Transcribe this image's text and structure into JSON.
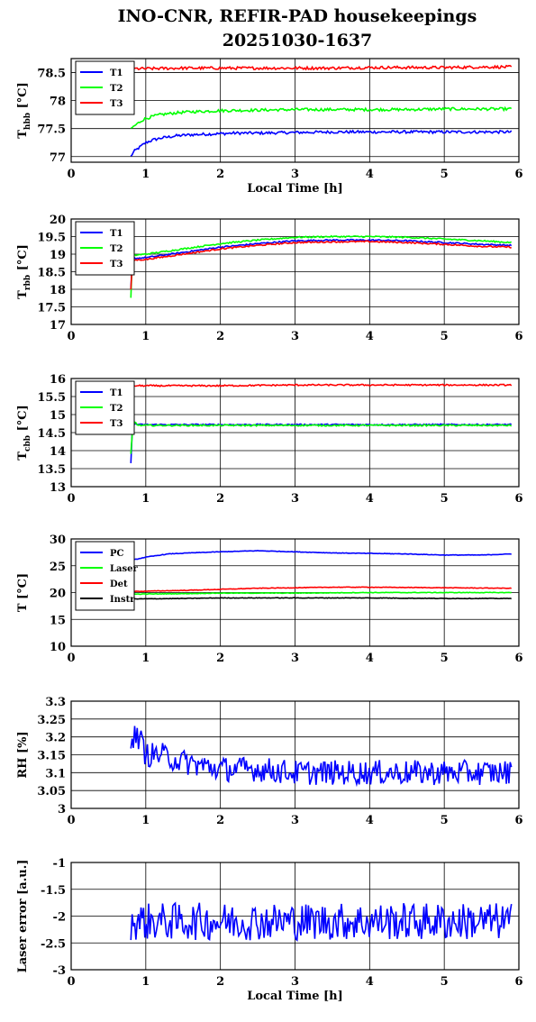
{
  "title_line1": "INO-CNR, REFIR-PAD housekeepings",
  "title_line2": "20251030-1637",
  "chart_data": [
    {
      "type": "line",
      "ylabel_main": "T",
      "ylabel_sub": "hbb",
      "ylabel_unit": "[°C]",
      "xlabel": "Local Time [h]",
      "xlim": [
        0,
        6
      ],
      "ylim": [
        76.9,
        78.75
      ],
      "xticks": [
        0,
        1,
        2,
        3,
        4,
        5,
        6
      ],
      "yticks": [
        77,
        77.5,
        78,
        78.5
      ],
      "ytick_labels": [
        "77",
        "77.5",
        "78",
        "78.5"
      ],
      "grid": true,
      "legend": "top-left",
      "series": [
        {
          "name": "T1",
          "color": "#0000ff",
          "x": [
            0.8,
            0.82,
            0.85,
            0.9,
            0.95,
            1.0,
            1.1,
            1.2,
            1.4,
            1.6,
            1.8,
            2.0,
            2.2,
            2.5,
            3.0,
            3.5,
            4.0,
            4.5,
            5.0,
            5.5,
            5.9
          ],
          "values": [
            77.0,
            77.05,
            77.1,
            77.15,
            77.2,
            77.25,
            77.3,
            77.33,
            77.37,
            77.39,
            77.4,
            77.41,
            77.42,
            77.42,
            77.43,
            77.44,
            77.44,
            77.44,
            77.44,
            77.44,
            77.44
          ]
        },
        {
          "name": "T2",
          "color": "#00ff00",
          "x": [
            0.8,
            0.85,
            0.9,
            0.95,
            1.0,
            1.1,
            1.2,
            1.4,
            1.6,
            1.8,
            2.0,
            2.5,
            3.0,
            3.5,
            4.0,
            4.5,
            5.0,
            5.5,
            5.9
          ],
          "values": [
            77.5,
            77.55,
            77.6,
            77.65,
            77.68,
            77.72,
            77.75,
            77.78,
            77.8,
            77.81,
            77.82,
            77.83,
            77.84,
            77.84,
            77.84,
            77.84,
            77.85,
            77.85,
            77.85
          ]
        },
        {
          "name": "T3",
          "color": "#ff0000",
          "x": [
            0.8,
            1.0,
            1.5,
            2.0,
            2.5,
            3.0,
            3.5,
            4.0,
            4.5,
            5.0,
            5.5,
            5.9
          ],
          "values": [
            78.57,
            78.57,
            78.58,
            78.58,
            78.58,
            78.58,
            78.58,
            78.59,
            78.59,
            78.59,
            78.6,
            78.6
          ]
        }
      ],
      "noise": 0.025
    },
    {
      "type": "line",
      "ylabel_main": "T",
      "ylabel_sub": "rbb",
      "ylabel_unit": "[°C]",
      "xlabel": "",
      "xlim": [
        0,
        6
      ],
      "ylim": [
        17,
        20
      ],
      "xticks": [
        0,
        1,
        2,
        3,
        4,
        5,
        6
      ],
      "yticks": [
        17,
        17.5,
        18,
        18.5,
        19,
        19.5,
        20
      ],
      "ytick_labels": [
        "17",
        "17.5",
        "18",
        "18.5",
        "19",
        "19.5",
        "20"
      ],
      "grid": true,
      "legend": "top-left",
      "series": [
        {
          "name": "T1",
          "color": "#0000ff",
          "x": [
            0.8,
            0.82,
            0.85,
            1.0,
            1.5,
            2.0,
            2.5,
            3.0,
            3.5,
            4.0,
            4.5,
            5.0,
            5.5,
            5.9
          ],
          "values": [
            18.0,
            18.85,
            18.88,
            18.9,
            19.05,
            19.2,
            19.3,
            19.38,
            19.4,
            19.4,
            19.38,
            19.33,
            19.28,
            19.25
          ]
        },
        {
          "name": "T2",
          "color": "#00ff00",
          "x": [
            0.8,
            0.82,
            0.85,
            1.0,
            1.5,
            2.0,
            2.5,
            3.0,
            3.5,
            4.0,
            4.5,
            5.0,
            5.5,
            5.9
          ],
          "values": [
            17.75,
            18.95,
            18.97,
            19.0,
            19.15,
            19.3,
            19.4,
            19.48,
            19.5,
            19.5,
            19.48,
            19.43,
            19.38,
            19.33
          ]
        },
        {
          "name": "T3",
          "color": "#ff0000",
          "x": [
            0.8,
            0.82,
            0.85,
            1.0,
            1.5,
            2.0,
            2.5,
            3.0,
            3.5,
            4.0,
            4.5,
            5.0,
            5.5,
            5.9
          ],
          "values": [
            18.0,
            18.8,
            18.83,
            18.85,
            19.0,
            19.15,
            19.25,
            19.33,
            19.35,
            19.36,
            19.33,
            19.28,
            19.22,
            19.2
          ]
        }
      ],
      "noise": 0.02
    },
    {
      "type": "line",
      "ylabel_main": "T",
      "ylabel_sub": "cbb",
      "ylabel_unit": "[°C]",
      "xlabel": "",
      "xlim": [
        0,
        6
      ],
      "ylim": [
        13,
        16
      ],
      "xticks": [
        0,
        1,
        2,
        3,
        4,
        5,
        6
      ],
      "yticks": [
        13,
        13.5,
        14,
        14.5,
        15,
        15.5,
        16
      ],
      "ytick_labels": [
        "13",
        "13.5",
        "14",
        "14.5",
        "15",
        "15.5",
        "16"
      ],
      "grid": true,
      "legend": "top-left",
      "series": [
        {
          "name": "T1",
          "color": "#0000ff",
          "x": [
            0.8,
            0.82,
            0.85,
            0.9,
            1.0,
            2.0,
            3.0,
            4.0,
            5.0,
            5.9
          ],
          "values": [
            13.65,
            14.6,
            14.75,
            14.72,
            14.72,
            14.72,
            14.72,
            14.72,
            14.72,
            14.72
          ]
        },
        {
          "name": "T2",
          "color": "#00ff00",
          "x": [
            0.8,
            0.82,
            0.85,
            0.9,
            1.0,
            2.0,
            3.0,
            4.0,
            5.0,
            5.9
          ],
          "values": [
            13.9,
            14.5,
            14.8,
            14.7,
            14.7,
            14.7,
            14.7,
            14.7,
            14.7,
            14.7
          ]
        },
        {
          "name": "T3",
          "color": "#ff0000",
          "x": [
            0.8,
            1.0,
            2.0,
            3.0,
            4.0,
            5.0,
            5.9
          ],
          "values": [
            15.8,
            15.8,
            15.8,
            15.82,
            15.82,
            15.82,
            15.82
          ]
        }
      ],
      "noise": 0.02
    },
    {
      "type": "line",
      "ylabel_main": "T [°C]",
      "ylabel_sub": "",
      "ylabel_unit": "",
      "xlabel": "",
      "xlim": [
        0,
        6
      ],
      "ylim": [
        10,
        30
      ],
      "xticks": [
        0,
        1,
        2,
        3,
        4,
        5,
        6
      ],
      "yticks": [
        10,
        15,
        20,
        25,
        30
      ],
      "ytick_labels": [
        "10",
        "15",
        "20",
        "25",
        "30"
      ],
      "grid": true,
      "legend": "top-left",
      "series": [
        {
          "name": "PC",
          "color": "#0000ff",
          "x": [
            0.8,
            1.0,
            1.3,
            1.6,
            2.0,
            2.5,
            3.0,
            3.5,
            4.0,
            4.5,
            5.0,
            5.5,
            5.9
          ],
          "values": [
            26.0,
            26.6,
            27.2,
            27.4,
            27.6,
            27.8,
            27.6,
            27.4,
            27.3,
            27.2,
            27.0,
            27.0,
            27.2
          ]
        },
        {
          "name": "Laser",
          "color": "#00ff00",
          "x": [
            0.8,
            1.5,
            2.0,
            3.0,
            4.0,
            5.0,
            5.9
          ],
          "values": [
            19.7,
            19.8,
            19.9,
            19.9,
            20.0,
            20.0,
            20.0
          ]
        },
        {
          "name": "Det",
          "color": "#ff0000",
          "x": [
            0.8,
            1.5,
            2.0,
            2.5,
            3.0,
            3.5,
            4.0,
            5.0,
            5.9
          ],
          "values": [
            20.2,
            20.4,
            20.6,
            20.8,
            20.9,
            21.0,
            21.0,
            20.9,
            20.8
          ]
        },
        {
          "name": "Instr",
          "color": "#000000",
          "x": [
            0.8,
            1.5,
            2.0,
            3.0,
            4.0,
            5.0,
            5.9
          ],
          "values": [
            18.8,
            18.9,
            19.0,
            19.0,
            19.0,
            18.9,
            18.9
          ]
        }
      ],
      "noise": 0.05
    },
    {
      "type": "line",
      "ylabel_main": "RH [%]",
      "ylabel_sub": "",
      "ylabel_unit": "",
      "xlabel": "",
      "xlim": [
        0,
        6
      ],
      "ylim": [
        3,
        3.3
      ],
      "xticks": [
        0,
        1,
        2,
        3,
        4,
        5,
        6
      ],
      "yticks": [
        3,
        3.05,
        3.1,
        3.15,
        3.2,
        3.25,
        3.3
      ],
      "ytick_labels": [
        "3",
        "3.05",
        "3.1",
        "3.15",
        "3.2",
        "3.25",
        "3.3"
      ],
      "grid": true,
      "legend": "none",
      "series": [
        {
          "name": "",
          "color": "#0000ff",
          "x": [
            0.8,
            0.9,
            0.95,
            1.0,
            1.2,
            1.5,
            2.0,
            2.5,
            3.0,
            3.5,
            4.0,
            4.5,
            5.0,
            5.5,
            5.9
          ],
          "values": [
            3.2,
            3.2,
            3.18,
            3.15,
            3.15,
            3.13,
            3.11,
            3.11,
            3.1,
            3.1,
            3.1,
            3.1,
            3.1,
            3.1,
            3.1
          ]
        }
      ],
      "noise": 0.035
    },
    {
      "type": "line",
      "ylabel_main": "Laser error [a.u.]",
      "ylabel_sub": "",
      "ylabel_unit": "",
      "xlabel": "Local Time [h]",
      "xlim": [
        0,
        6
      ],
      "ylim": [
        -3,
        -1
      ],
      "xticks": [
        0,
        1,
        2,
        3,
        4,
        5,
        6
      ],
      "yticks": [
        -3,
        -2.5,
        -2,
        -1.5,
        -1
      ],
      "ytick_labels": [
        "-3",
        "-2.5",
        "-2",
        "-1.5",
        "-1"
      ],
      "grid": true,
      "legend": "none",
      "series": [
        {
          "name": "",
          "color": "#0000ff",
          "x": [
            0.8,
            5.9
          ],
          "values": [
            -2.1,
            -2.1
          ]
        }
      ],
      "noise": 0.35
    }
  ]
}
